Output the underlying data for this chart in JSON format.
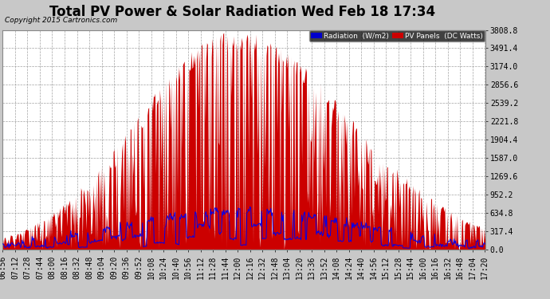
{
  "title": "Total PV Power & Solar Radiation Wed Feb 18 17:34",
  "copyright": "Copyright 2015 Cartronics.com",
  "legend_radiation": "Radiation  (W/m2)",
  "legend_pv": "PV Panels  (DC Watts)",
  "legend_radiation_bg": "#0000cc",
  "legend_pv_bg": "#cc0000",
  "y_max": 3808.8,
  "y_ticks": [
    0.0,
    317.4,
    634.8,
    952.2,
    1269.6,
    1587.0,
    1904.4,
    2221.8,
    2539.2,
    2856.6,
    3174.0,
    3491.4,
    3808.8
  ],
  "background_color": "#c8c8c8",
  "plot_bg_color": "#ffffff",
  "grid_color": "#999999",
  "pv_color": "#cc0000",
  "radiation_color": "#0000ee",
  "title_fontsize": 12,
  "tick_label_fontsize": 7,
  "n_points": 626
}
